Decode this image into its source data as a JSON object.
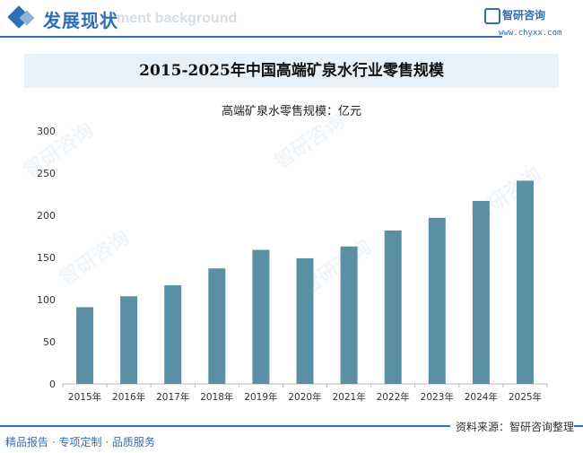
{
  "header": {
    "title": "发展现状",
    "ghost_text": "ment background",
    "logo_name": "智研咨询",
    "logo_url": "www.chyxx.com"
  },
  "chart_title": "2015-2025年中国高端矿泉水行业零售规模",
  "footer": {
    "source": "资料来源：智研咨询整理",
    "slogan": "精品报告 · 专项定制 · 品质服务"
  },
  "watermark": "智研咨询",
  "colors": {
    "bar": "#5b8fa6",
    "accent": "#2f6fb5"
  },
  "chart_data": {
    "type": "bar",
    "title": "2015-2025年中国高端矿泉水行业零售规模",
    "series_label": "高端矿泉水零售规模：亿元",
    "categories": [
      "2015年",
      "2016年",
      "2017年",
      "2018年",
      "2019年",
      "2020年",
      "2021年",
      "2022年",
      "2023年",
      "2024年",
      "2025年"
    ],
    "values": [
      91,
      104,
      117,
      137,
      159,
      149,
      163,
      182,
      197,
      217,
      241
    ],
    "ylim": [
      0,
      300
    ],
    "yticks": [
      0,
      50,
      100,
      150,
      200,
      250,
      300
    ],
    "grid": false
  }
}
